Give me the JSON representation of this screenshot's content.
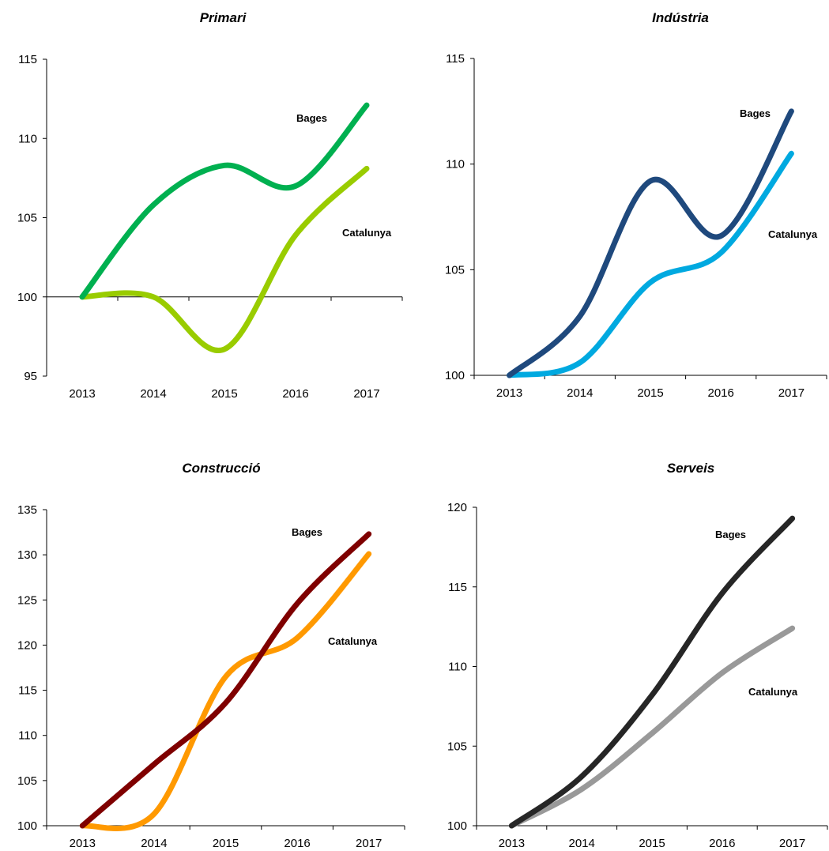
{
  "chart_data": [
    {
      "type": "line",
      "title": "Primari",
      "categories": [
        "2013",
        "2014",
        "2015",
        "2016",
        "2017"
      ],
      "ylim": [
        95,
        115
      ],
      "yticks": [
        95,
        100,
        105,
        110,
        115
      ],
      "grid": false,
      "series": [
        {
          "name": "Bages",
          "values": [
            100,
            105.8,
            108.3,
            107.0,
            112.1
          ],
          "color": "#00b050"
        },
        {
          "name": "Catalunya",
          "values": [
            100,
            100.0,
            96.7,
            103.9,
            108.1
          ],
          "color": "#99cc00"
        }
      ]
    },
    {
      "type": "line",
      "title": "Indústria",
      "categories": [
        "2013",
        "2014",
        "2015",
        "2016",
        "2017"
      ],
      "ylim": [
        100,
        115
      ],
      "yticks": [
        100,
        105,
        110,
        115
      ],
      "grid": false,
      "series": [
        {
          "name": "Bages",
          "values": [
            100,
            102.8,
            109.2,
            106.6,
            112.5
          ],
          "color": "#1f497d"
        },
        {
          "name": "Catalunya",
          "values": [
            100,
            100.6,
            104.4,
            105.8,
            110.5
          ],
          "color": "#00a9e0"
        }
      ]
    },
    {
      "type": "line",
      "title": "Construcció",
      "categories": [
        "2013",
        "2014",
        "2015",
        "2016",
        "2017"
      ],
      "ylim": [
        100,
        135
      ],
      "yticks": [
        100,
        105,
        110,
        115,
        120,
        125,
        130,
        135
      ],
      "grid": false,
      "series": [
        {
          "name": "Bages",
          "values": [
            100,
            106.8,
            113.6,
            124.6,
            132.3
          ],
          "color": "#7f0000"
        },
        {
          "name": "Catalunya",
          "values": [
            100,
            101.3,
            116.5,
            120.8,
            130.1
          ],
          "color": "#ff9900"
        }
      ]
    },
    {
      "type": "line",
      "title": "Serveis",
      "categories": [
        "2013",
        "2014",
        "2015",
        "2016",
        "2017"
      ],
      "ylim": [
        100,
        120
      ],
      "yticks": [
        100,
        105,
        110,
        115,
        120
      ],
      "grid": false,
      "series": [
        {
          "name": "Bages",
          "values": [
            100,
            103.1,
            108.2,
            114.6,
            119.3
          ],
          "color": "#262626"
        },
        {
          "name": "Catalunya",
          "values": [
            100,
            102.3,
            105.8,
            109.6,
            112.4
          ],
          "color": "#999999"
        }
      ]
    }
  ]
}
